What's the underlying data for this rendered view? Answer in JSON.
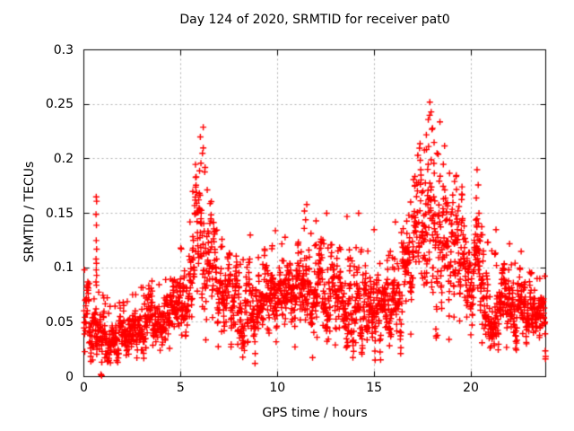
{
  "chart_data": {
    "type": "scatter",
    "title": "Day 124 of 2020, SRMTID for receiver pat0",
    "xlabel": "GPS time / hours",
    "ylabel": "SRMTID / TECUs",
    "xlim": [
      0,
      23.87
    ],
    "ylim": [
      0,
      0.3
    ],
    "xticks": [
      0,
      5,
      10,
      15,
      20
    ],
    "yticks": [
      0,
      0.05,
      0.1,
      0.15,
      0.2,
      0.25,
      0.3
    ],
    "grid": true,
    "legend": "none",
    "marker": "plus",
    "marker_size": 7,
    "colors": {
      "marker": "#ff0000",
      "axis": "#000000",
      "grid": "#b0b0b0",
      "text": "#000000",
      "background": "#ffffff"
    },
    "n_points": 2600,
    "seed": 124,
    "spike_prob": 0.05,
    "envelope": [
      [
        0.0,
        0.055,
        0.018
      ],
      [
        0.7,
        0.046,
        0.013
      ],
      [
        1.6,
        0.034,
        0.011
      ],
      [
        2.3,
        0.04,
        0.012
      ],
      [
        3.2,
        0.05,
        0.013
      ],
      [
        4.2,
        0.056,
        0.013
      ],
      [
        4.9,
        0.066,
        0.016
      ],
      [
        5.5,
        0.095,
        0.028
      ],
      [
        5.9,
        0.135,
        0.035
      ],
      [
        6.3,
        0.125,
        0.033
      ],
      [
        6.8,
        0.082,
        0.02
      ],
      [
        7.6,
        0.07,
        0.016
      ],
      [
        8.4,
        0.062,
        0.016
      ],
      [
        9.2,
        0.072,
        0.016
      ],
      [
        10.2,
        0.076,
        0.017
      ],
      [
        11.4,
        0.08,
        0.021
      ],
      [
        12.4,
        0.072,
        0.019
      ],
      [
        13.5,
        0.066,
        0.018
      ],
      [
        14.5,
        0.07,
        0.018
      ],
      [
        15.6,
        0.063,
        0.016
      ],
      [
        16.4,
        0.078,
        0.02
      ],
      [
        17.1,
        0.11,
        0.028
      ],
      [
        17.7,
        0.145,
        0.036
      ],
      [
        18.2,
        0.148,
        0.036
      ],
      [
        18.7,
        0.132,
        0.03
      ],
      [
        19.3,
        0.112,
        0.026
      ],
      [
        19.9,
        0.096,
        0.023
      ],
      [
        20.5,
        0.082,
        0.022
      ],
      [
        21.1,
        0.072,
        0.016
      ],
      [
        22.0,
        0.068,
        0.015
      ],
      [
        22.8,
        0.062,
        0.014
      ],
      [
        23.4,
        0.055,
        0.013
      ],
      [
        23.87,
        0.056,
        0.015
      ]
    ],
    "extra_points": [
      [
        0.64,
        0.165
      ],
      [
        0.66,
        0.161
      ],
      [
        0.63,
        0.149
      ],
      [
        0.65,
        0.139
      ],
      [
        0.64,
        0.125
      ],
      [
        0.66,
        0.117
      ],
      [
        0.63,
        0.108
      ],
      [
        0.65,
        0.104
      ],
      [
        0.64,
        0.098
      ],
      [
        0.66,
        0.093
      ],
      [
        0.63,
        0.087
      ],
      [
        0.65,
        0.084
      ],
      [
        0.88,
        0.002
      ],
      [
        0.92,
        0.001
      ],
      [
        6.17,
        0.229
      ],
      [
        6.02,
        0.22
      ],
      [
        6.17,
        0.21
      ],
      [
        6.13,
        0.205
      ],
      [
        6.05,
        0.196
      ],
      [
        5.98,
        0.189
      ],
      [
        5.78,
        0.183
      ],
      [
        5.63,
        0.17
      ],
      [
        17.88,
        0.252
      ],
      [
        17.95,
        0.243
      ],
      [
        17.8,
        0.236
      ],
      [
        18.02,
        0.228
      ],
      [
        17.7,
        0.222
      ],
      [
        18.1,
        0.215
      ],
      [
        17.6,
        0.208
      ],
      [
        18.25,
        0.205
      ],
      [
        20.32,
        0.19
      ],
      [
        20.38,
        0.176
      ],
      [
        20.28,
        0.164
      ],
      [
        20.42,
        0.15
      ],
      [
        21.3,
        0.135
      ],
      [
        22.0,
        0.122
      ],
      [
        22.6,
        0.115
      ],
      [
        11.4,
        0.152
      ],
      [
        11.52,
        0.158
      ],
      [
        11.46,
        0.144
      ],
      [
        12.0,
        0.143
      ],
      [
        12.55,
        0.15
      ],
      [
        13.6,
        0.147
      ],
      [
        14.2,
        0.15
      ],
      [
        15.0,
        0.135
      ],
      [
        16.1,
        0.142
      ],
      [
        9.9,
        0.134
      ],
      [
        10.4,
        0.128
      ],
      [
        8.6,
        0.13
      ]
    ],
    "notable": {
      "max_value": 0.252,
      "max_hour": 17.9,
      "secondary_peak_value": 0.231,
      "secondary_peak_hour": 6.1,
      "baseline_level": 0.055
    }
  }
}
